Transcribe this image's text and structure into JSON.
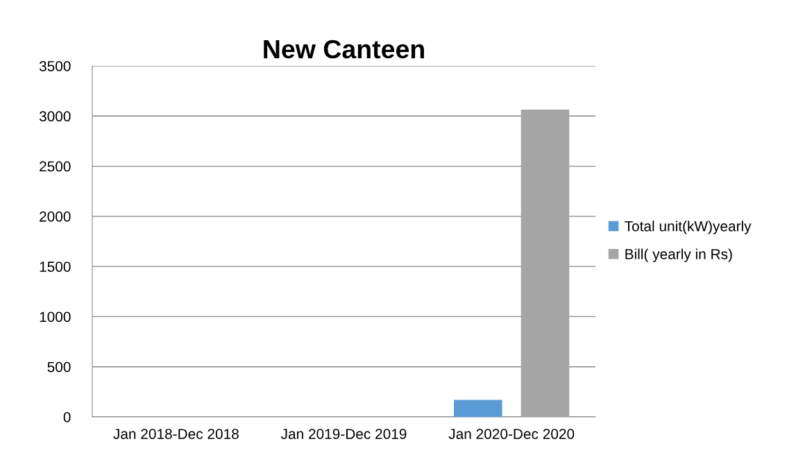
{
  "chart_data": {
    "type": "bar",
    "title": "New Canteen",
    "categories": [
      "Jan 2018-Dec 2018",
      "Jan 2019-Dec 2019",
      "Jan 2020-Dec 2020"
    ],
    "series": [
      {
        "name": "Total unit(kW)yearly",
        "color": "#5b9bd5",
        "values": [
          0,
          0,
          170
        ]
      },
      {
        "name": "Bill( yearly in Rs)",
        "color": "#a5a5a5",
        "values": [
          0,
          0,
          3065
        ]
      }
    ],
    "ylim": [
      0,
      3500
    ],
    "yticks": [
      0,
      500,
      1000,
      1500,
      2000,
      2500,
      3000,
      3500
    ],
    "grid": "y",
    "legend": "right"
  }
}
